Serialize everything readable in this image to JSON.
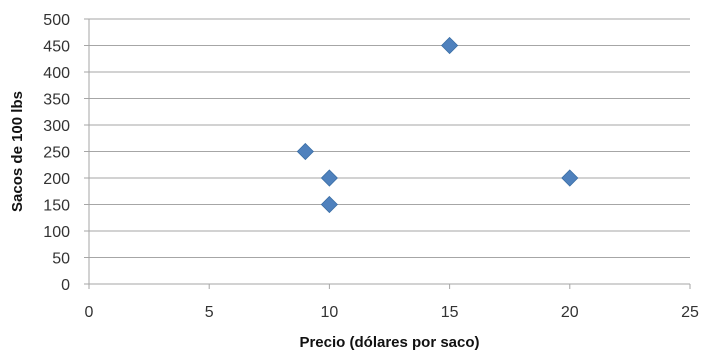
{
  "chart_data": {
    "type": "scatter",
    "title": "",
    "xlabel": "Precio (dólares por saco)",
    "ylabel": "Sacos de 100 lbs",
    "xlim": [
      0,
      25
    ],
    "ylim": [
      0,
      500
    ],
    "x_ticks": [
      0,
      5,
      10,
      15,
      20,
      25
    ],
    "y_ticks": [
      0,
      50,
      100,
      150,
      200,
      250,
      300,
      350,
      400,
      450,
      500
    ],
    "grid": {
      "horizontal": true,
      "vertical": false
    },
    "legend": "none",
    "marker": "diamond",
    "colors": {
      "marker": "#4F81BD",
      "gridline": "#A6A6A6",
      "axis": "#A6A6A6"
    },
    "points": [
      {
        "x": 9,
        "y": 250
      },
      {
        "x": 10,
        "y": 200
      },
      {
        "x": 10,
        "y": 150
      },
      {
        "x": 15,
        "y": 450
      },
      {
        "x": 20,
        "y": 200
      }
    ]
  }
}
